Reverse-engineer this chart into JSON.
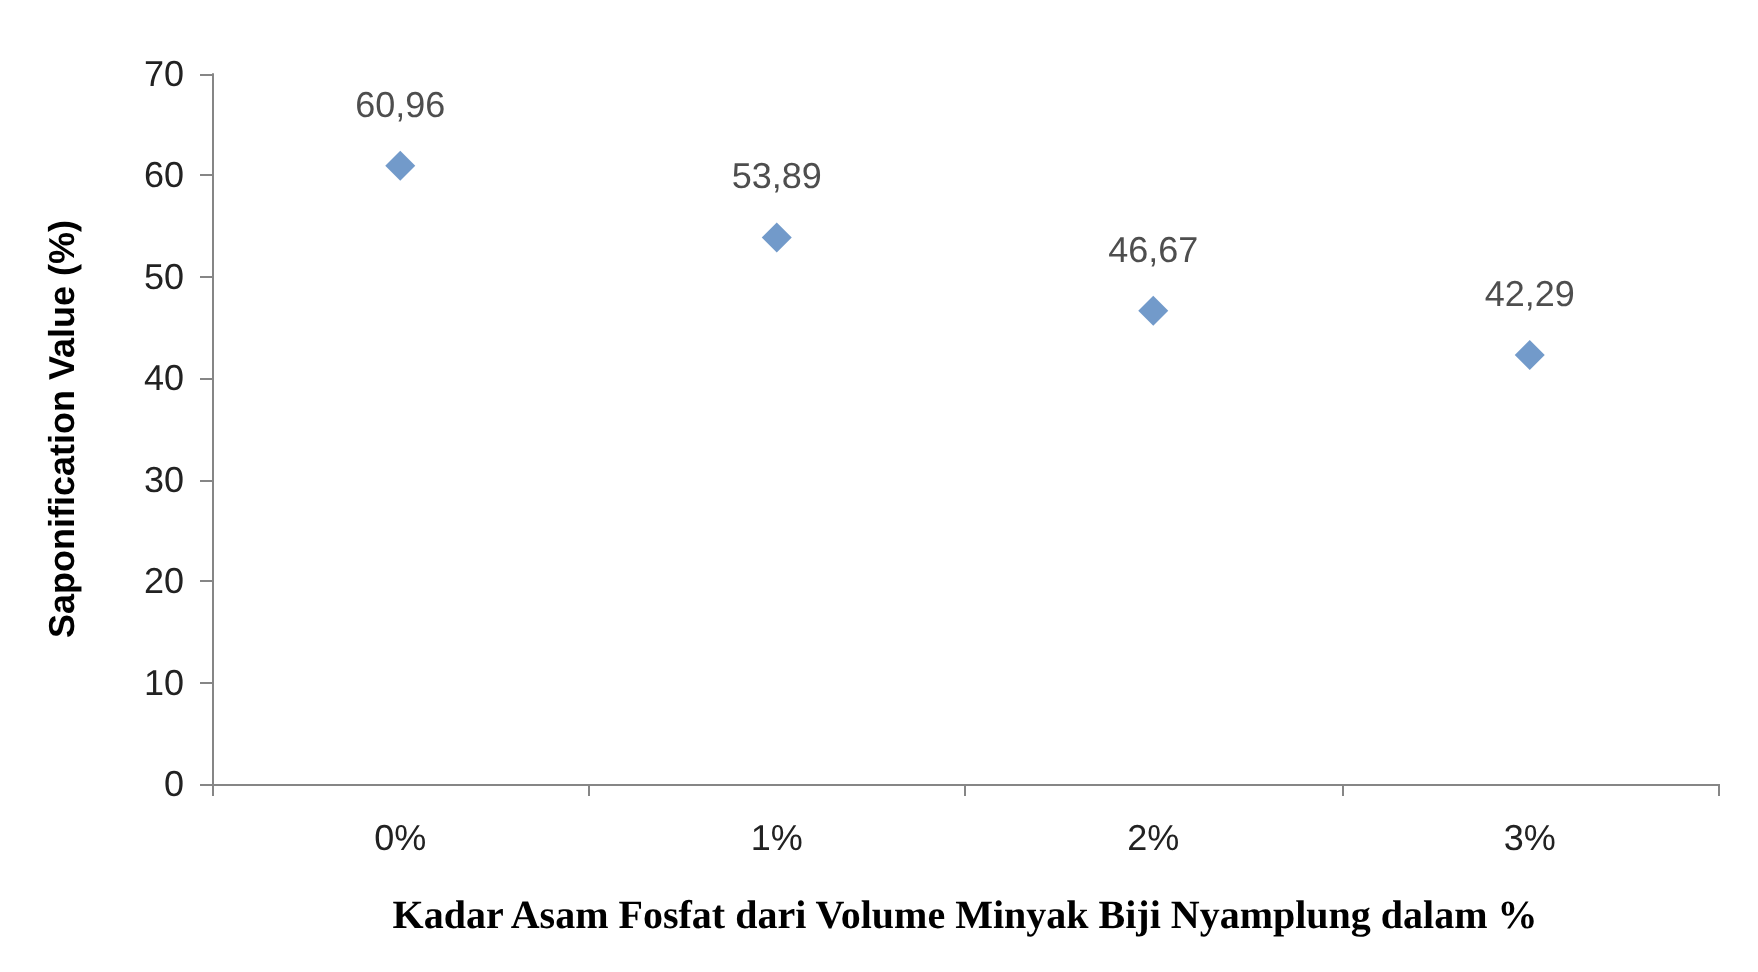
{
  "chart_data": {
    "type": "scatter",
    "xlabel": "Kadar Asam Fosfat dari Volume Minyak Biji Nyamplung dalam %",
    "ylabel": "Saponification Value (%)",
    "categories": [
      "0%",
      "1%",
      "2%",
      "3%"
    ],
    "values": [
      60.96,
      53.89,
      46.67,
      42.29
    ],
    "value_labels": [
      "60,96",
      "53,89",
      "46,67",
      "42,29"
    ],
    "color": "#4f81bd",
    "marker": "diamond",
    "ylim": [
      0,
      70
    ],
    "yticks": [
      0,
      10,
      20,
      30,
      40,
      50,
      60,
      70
    ],
    "grid": false
  }
}
